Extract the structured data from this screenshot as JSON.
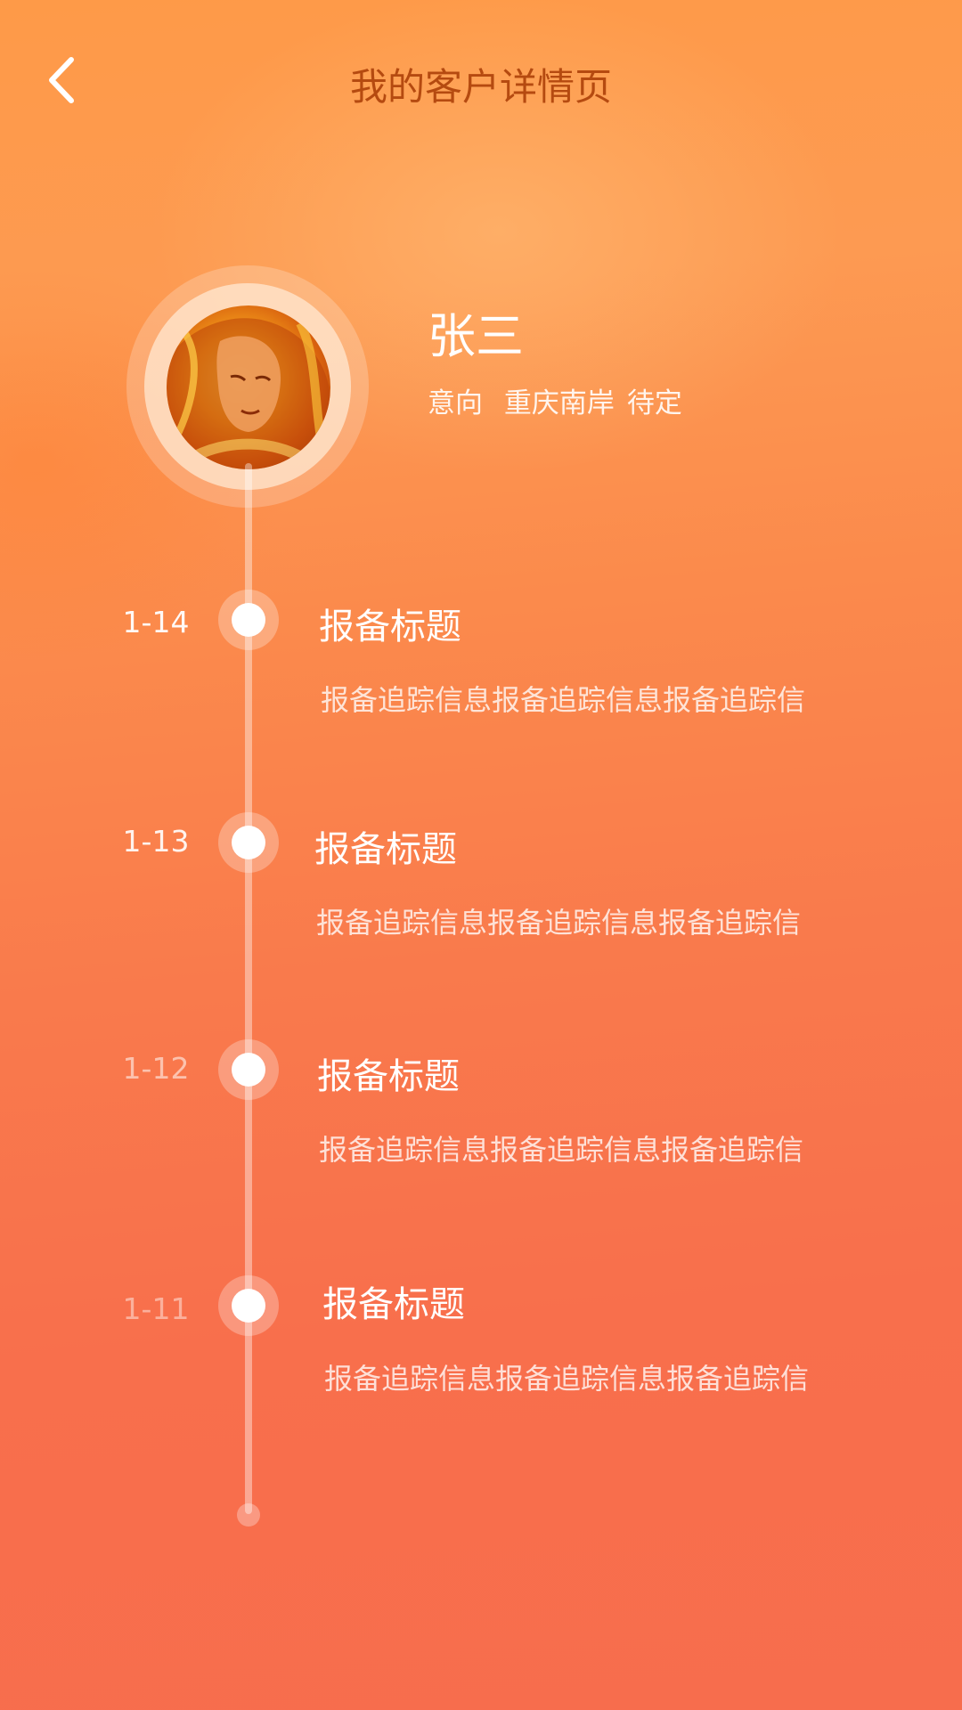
{
  "header": {
    "title": "我的客户详情页",
    "back_icon": "chevron-left-icon"
  },
  "profile": {
    "name": "张三",
    "intent_label": "意向",
    "location": "重庆南岸",
    "status": "待定"
  },
  "timeline": [
    {
      "date": "1-14",
      "title": "报备标题",
      "desc": "报备追踪信息报备追踪信息报备追踪信"
    },
    {
      "date": "1-13",
      "title": "报备标题",
      "desc": "报备追踪信息报备追踪信息报备追踪信"
    },
    {
      "date": "1-12",
      "title": "报备标题",
      "desc": "报备追踪信息报备追踪信息报备追踪信"
    },
    {
      "date": "1-11",
      "title": "报备标题",
      "desc": "报备追踪信息报备追踪信息报备追踪信"
    }
  ],
  "colors": {
    "title": "#b54a10",
    "background_top": "#fe9a48",
    "background_bottom": "#f76d4d"
  }
}
